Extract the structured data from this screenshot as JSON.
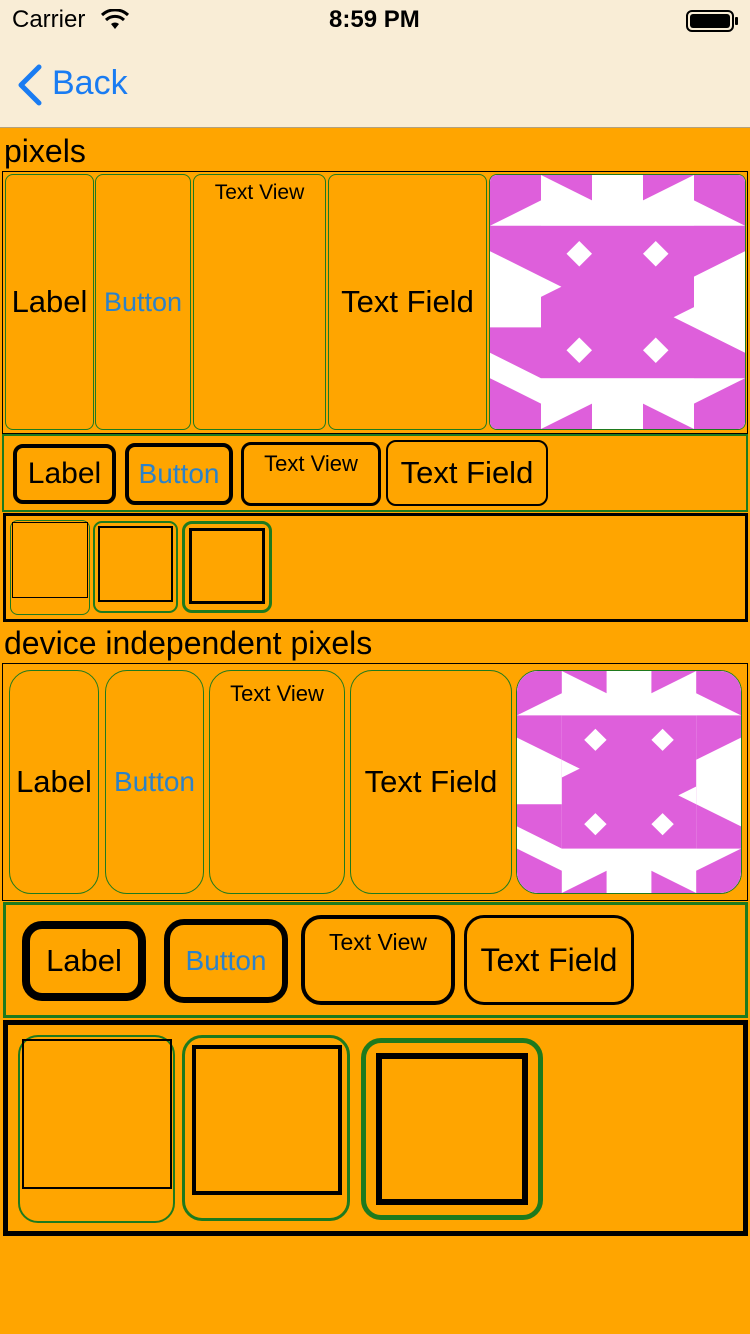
{
  "status_bar": {
    "carrier": "Carrier",
    "time": "8:59 PM"
  },
  "nav": {
    "back_label": "Back"
  },
  "sections": [
    {
      "title": "pixels",
      "label": "Label",
      "button": "Button",
      "text_view": "Text View",
      "text_field": "Text Field"
    },
    {
      "title": "device independent pixels",
      "label": "Label",
      "button": "Button",
      "text_view": "Text View",
      "text_field": "Text Field"
    }
  ],
  "colors": {
    "background": "#FFA500",
    "bar": "#F9EDD6",
    "accent": "#1A7CF2",
    "border_green": "#1E7A1E",
    "identicon": "#DE5FDB"
  }
}
